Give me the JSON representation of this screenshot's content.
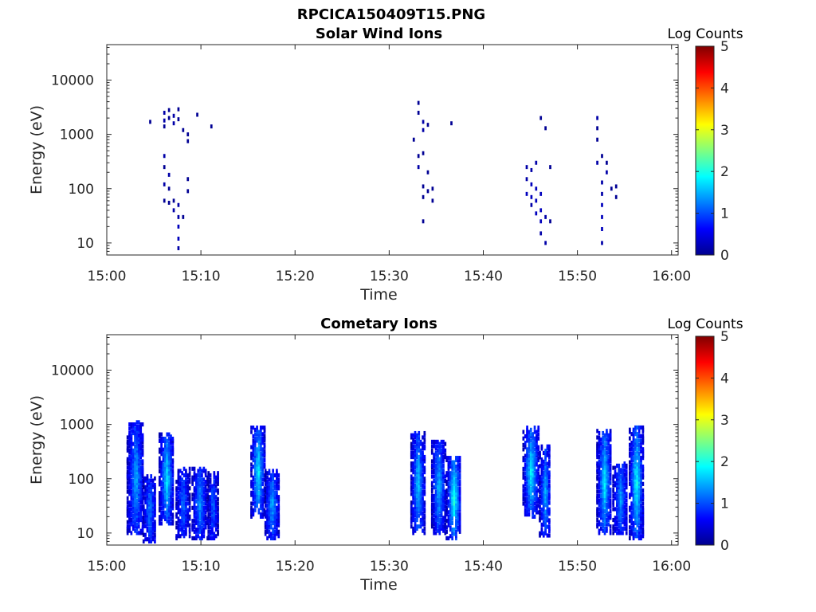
{
  "figure_title": "RPCICA150409T15.PNG",
  "chart_data": [
    {
      "type": "heatmap",
      "title": "Solar Wind Ions",
      "xlabel": "Time",
      "ylabel": "Energy (eV)",
      "x_ticks": [
        "15:00",
        "15:10",
        "15:20",
        "15:30",
        "15:40",
        "15:50",
        "16:00"
      ],
      "x_range": [
        "15:00",
        "16:00"
      ],
      "y_scale": "log",
      "y_ticks": [
        10,
        100,
        1000,
        10000
      ],
      "y_range": [
        6,
        45000
      ],
      "colorbar": {
        "label": "Log Counts",
        "range": [
          0,
          5
        ],
        "ticks": [
          0,
          1,
          2,
          3,
          4,
          5
        ],
        "colormap": "jet"
      },
      "cells": [
        {
          "t": "15:04.5",
          "e": 1700,
          "v": 0.1
        },
        {
          "t": "15:06",
          "e": 2500,
          "v": 0.2
        },
        {
          "t": "15:06",
          "e": 1800,
          "v": 0.2
        },
        {
          "t": "15:06",
          "e": 1400,
          "v": 0.1
        },
        {
          "t": "15:06.5",
          "e": 2800,
          "v": 0.1
        },
        {
          "t": "15:06.5",
          "e": 2000,
          "v": 0.1
        },
        {
          "t": "15:07",
          "e": 2200,
          "v": 0.2
        },
        {
          "t": "15:07",
          "e": 1600,
          "v": 0.2
        },
        {
          "t": "15:07.5",
          "e": 2900,
          "v": 0.1
        },
        {
          "t": "15:07.5",
          "e": 1900,
          "v": 0.1
        },
        {
          "t": "15:08",
          "e": 1200,
          "v": 0.1
        },
        {
          "t": "15:08.5",
          "e": 1000,
          "v": 0.1
        },
        {
          "t": "15:08.5",
          "e": 750,
          "v": 0.1
        },
        {
          "t": "15:09.5",
          "e": 2300,
          "v": 0.1
        },
        {
          "t": "15:11",
          "e": 1400,
          "v": 0.1
        },
        {
          "t": "15:06",
          "e": 400,
          "v": 0.2
        },
        {
          "t": "15:06",
          "e": 250,
          "v": 0.1
        },
        {
          "t": "15:06",
          "e": 120,
          "v": 0.2
        },
        {
          "t": "15:06",
          "e": 60,
          "v": 0.1
        },
        {
          "t": "15:06.5",
          "e": 180,
          "v": 0.2
        },
        {
          "t": "15:06.5",
          "e": 100,
          "v": 0.1
        },
        {
          "t": "15:06.5",
          "e": 55,
          "v": 0.1
        },
        {
          "t": "15:07",
          "e": 60,
          "v": 0.1
        },
        {
          "t": "15:07",
          "e": 40,
          "v": 0.2
        },
        {
          "t": "15:07.5",
          "e": 50,
          "v": 0.2
        },
        {
          "t": "15:07.5",
          "e": 30,
          "v": 0.2
        },
        {
          "t": "15:07.5",
          "e": 20,
          "v": 0.3
        },
        {
          "t": "15:07.5",
          "e": 12,
          "v": 0.3
        },
        {
          "t": "15:07.5",
          "e": 8,
          "v": 0.2
        },
        {
          "t": "15:08",
          "e": 30,
          "v": 0.1
        },
        {
          "t": "15:08.5",
          "e": 90,
          "v": 0.1
        },
        {
          "t": "15:08.5",
          "e": 150,
          "v": 0.1
        },
        {
          "t": "15:33",
          "e": 3800,
          "v": 0.1
        },
        {
          "t": "15:33",
          "e": 2500,
          "v": 0.1
        },
        {
          "t": "15:33.5",
          "e": 1700,
          "v": 0.2
        },
        {
          "t": "15:33.5",
          "e": 1200,
          "v": 0.2
        },
        {
          "t": "15:34",
          "e": 1500,
          "v": 0.1
        },
        {
          "t": "15:36.5",
          "e": 1600,
          "v": 0.1
        },
        {
          "t": "15:32.5",
          "e": 800,
          "v": 0.1
        },
        {
          "t": "15:33",
          "e": 400,
          "v": 0.1
        },
        {
          "t": "15:33",
          "e": 250,
          "v": 0.2
        },
        {
          "t": "15:33.5",
          "e": 450,
          "v": 0.1
        },
        {
          "t": "15:34",
          "e": 200,
          "v": 0.1
        },
        {
          "t": "15:33.5",
          "e": 110,
          "v": 0.1
        },
        {
          "t": "15:33.5",
          "e": 70,
          "v": 0.1
        },
        {
          "t": "15:34",
          "e": 90,
          "v": 0.1
        },
        {
          "t": "15:34.5",
          "e": 100,
          "v": 0.1
        },
        {
          "t": "15:34.5",
          "e": 60,
          "v": 0.1
        },
        {
          "t": "15:33.5",
          "e": 25,
          "v": 0.1
        },
        {
          "t": "15:46",
          "e": 2000,
          "v": 0.1
        },
        {
          "t": "15:46.5",
          "e": 1300,
          "v": 0.1
        },
        {
          "t": "15:44.5",
          "e": 250,
          "v": 0.2
        },
        {
          "t": "15:44.5",
          "e": 150,
          "v": 0.2
        },
        {
          "t": "15:44.5",
          "e": 80,
          "v": 0.3
        },
        {
          "t": "15:45",
          "e": 220,
          "v": 0.2
        },
        {
          "t": "15:45",
          "e": 120,
          "v": 0.3
        },
        {
          "t": "15:45",
          "e": 70,
          "v": 0.3
        },
        {
          "t": "15:45",
          "e": 50,
          "v": 0.2
        },
        {
          "t": "15:45.5",
          "e": 300,
          "v": 0.2
        },
        {
          "t": "15:45.5",
          "e": 100,
          "v": 0.3
        },
        {
          "t": "15:45.5",
          "e": 60,
          "v": 0.3
        },
        {
          "t": "15:45.5",
          "e": 35,
          "v": 0.3
        },
        {
          "t": "15:46",
          "e": 80,
          "v": 0.3
        },
        {
          "t": "15:46",
          "e": 40,
          "v": 0.3
        },
        {
          "t": "15:46",
          "e": 25,
          "v": 0.3
        },
        {
          "t": "15:46",
          "e": 15,
          "v": 0.2
        },
        {
          "t": "15:46.5",
          "e": 30,
          "v": 0.2
        },
        {
          "t": "15:46.5",
          "e": 10,
          "v": 0.2
        },
        {
          "t": "15:47",
          "e": 25,
          "v": 0.1
        },
        {
          "t": "15:47",
          "e": 250,
          "v": 0.1
        },
        {
          "t": "15:52",
          "e": 2000,
          "v": 0.2
        },
        {
          "t": "15:52",
          "e": 1300,
          "v": 0.1
        },
        {
          "t": "15:52",
          "e": 800,
          "v": 0.1
        },
        {
          "t": "15:52",
          "e": 300,
          "v": 0.2
        },
        {
          "t": "15:52.5",
          "e": 400,
          "v": 0.1
        },
        {
          "t": "15:53",
          "e": 300,
          "v": 0.1
        },
        {
          "t": "15:52.5",
          "e": 130,
          "v": 0.2
        },
        {
          "t": "15:52.5",
          "e": 80,
          "v": 0.2
        },
        {
          "t": "15:52.5",
          "e": 50,
          "v": 0.3
        },
        {
          "t": "15:52.5",
          "e": 30,
          "v": 0.3
        },
        {
          "t": "15:52.5",
          "e": 18,
          "v": 0.3
        },
        {
          "t": "15:52.5",
          "e": 10,
          "v": 0.2
        },
        {
          "t": "15:53",
          "e": 200,
          "v": 0.2
        },
        {
          "t": "15:53.5",
          "e": 100,
          "v": 0.1
        },
        {
          "t": "15:54",
          "e": 70,
          "v": 0.1
        },
        {
          "t": "15:54",
          "e": 110,
          "v": 0.1
        }
      ]
    },
    {
      "type": "heatmap",
      "title": "Cometary Ions",
      "xlabel": "Time",
      "ylabel": "Energy (eV)",
      "x_ticks": [
        "15:00",
        "15:10",
        "15:20",
        "15:30",
        "15:40",
        "15:50",
        "16:00"
      ],
      "x_range": [
        "15:00",
        "16:00"
      ],
      "y_scale": "log",
      "y_ticks": [
        10,
        100,
        1000,
        10000
      ],
      "y_range": [
        6,
        45000
      ],
      "colorbar": {
        "label": "Log Counts",
        "range": [
          0,
          5
        ],
        "ticks": [
          0,
          1,
          2,
          3,
          4,
          5
        ],
        "colormap": "jet"
      },
      "bursts": [
        {
          "t": "15:03",
          "w": 1.8,
          "emin": 10,
          "emax": 1100,
          "peak": 1.2
        },
        {
          "t": "15:04.5",
          "w": 1.4,
          "emin": 7,
          "emax": 120,
          "peak": 1.0
        },
        {
          "t": "15:06.3",
          "w": 1.6,
          "emin": 15,
          "emax": 700,
          "peak": 1.5
        },
        {
          "t": "15:08",
          "w": 1.4,
          "emin": 8,
          "emax": 160,
          "peak": 0.9
        },
        {
          "t": "15:09.8",
          "w": 1.6,
          "emin": 8,
          "emax": 160,
          "peak": 1.1
        },
        {
          "t": "15:11.2",
          "w": 1.0,
          "emin": 8,
          "emax": 130,
          "peak": 0.9
        },
        {
          "t": "15:16",
          "w": 1.5,
          "emin": 20,
          "emax": 900,
          "peak": 1.6
        },
        {
          "t": "15:17.5",
          "w": 1.5,
          "emin": 8,
          "emax": 150,
          "peak": 1.2
        },
        {
          "t": "15:33",
          "w": 1.5,
          "emin": 10,
          "emax": 700,
          "peak": 1.4
        },
        {
          "t": "15:35.2",
          "w": 1.5,
          "emin": 10,
          "emax": 500,
          "peak": 1.3
        },
        {
          "t": "15:36.8",
          "w": 1.6,
          "emin": 8,
          "emax": 250,
          "peak": 1.8
        },
        {
          "t": "15:45",
          "w": 1.7,
          "emin": 20,
          "emax": 900,
          "peak": 1.6
        },
        {
          "t": "15:46.5",
          "w": 1.2,
          "emin": 9,
          "emax": 400,
          "peak": 1.2
        },
        {
          "t": "15:52.8",
          "w": 1.6,
          "emin": 10,
          "emax": 800,
          "peak": 1.5
        },
        {
          "t": "15:54.5",
          "w": 1.6,
          "emin": 10,
          "emax": 200,
          "peak": 1.1
        },
        {
          "t": "15:56.2",
          "w": 1.5,
          "emin": 8,
          "emax": 900,
          "peak": 1.7
        }
      ]
    }
  ]
}
